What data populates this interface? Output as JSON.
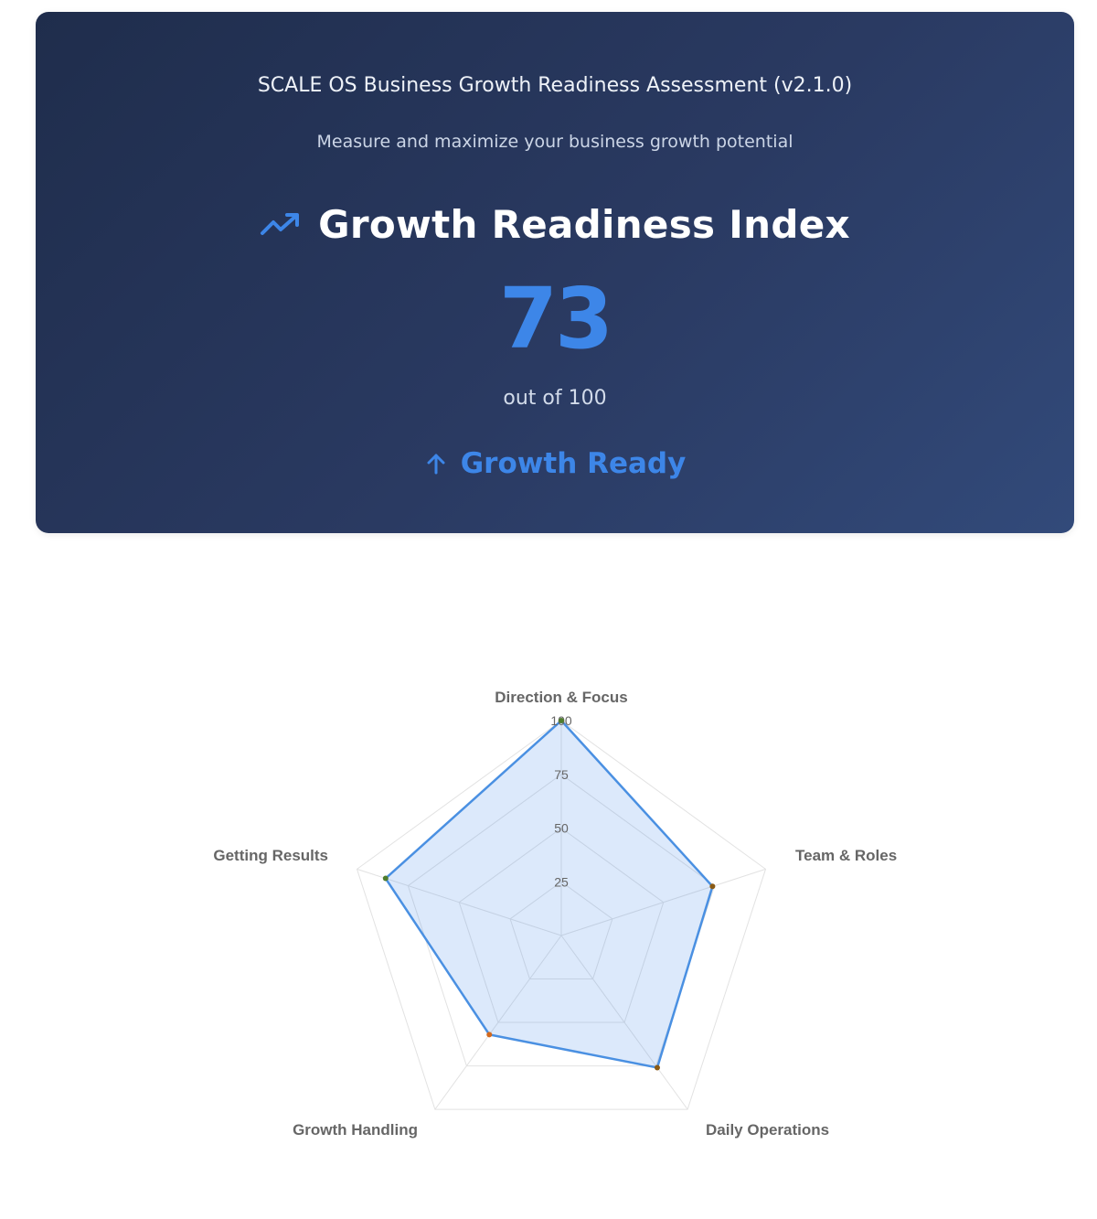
{
  "header": {
    "title": "SCALE OS Business Growth Readiness Assessment (v2.1.0)",
    "subtitle": "Measure and maximize your business growth potential"
  },
  "index": {
    "title": "Growth Readiness Index",
    "icon": "trending-up-icon",
    "score": "73",
    "score_suffix": "out of 100",
    "status_icon": "arrow-up-icon",
    "status": "Growth Ready"
  },
  "colors": {
    "accent": "#3d86e8",
    "hero_bg_start": "#1f2d4c",
    "hero_bg_end": "#324a7a",
    "radar_fill": "rgba(61,134,232,0.18)",
    "radar_line": "#4a90e2"
  },
  "chart_data": {
    "type": "radar",
    "categories": [
      "Direction & Focus",
      "Team & Roles",
      "Daily Operations",
      "Growth Handling",
      "Getting Results"
    ],
    "values": [
      100,
      74,
      76,
      57,
      86
    ],
    "ticks": [
      "25",
      "50",
      "75",
      "100"
    ],
    "rlim": [
      0,
      100
    ],
    "grid": true,
    "point_colors": [
      "#4f7d2d",
      "#8a5a14",
      "#8a5a14",
      "#d2691e",
      "#4f7d2d"
    ]
  }
}
